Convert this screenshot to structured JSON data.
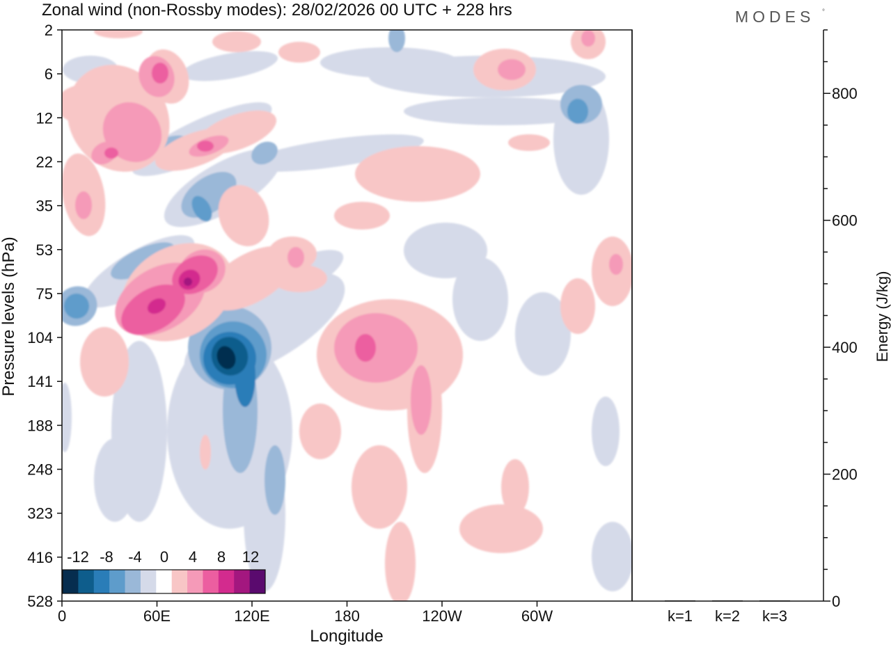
{
  "title": "Zonal wind (non-Rossby modes):  28/02/2026  00 UTC  + 228 hrs",
  "brand": "MODES",
  "brand_mark": "°",
  "colors": {
    "neg": [
      "#062d4f",
      "#0e5d8c",
      "#2a7db8",
      "#5e9ccb",
      "#9ab8d8",
      "#d5dae9"
    ],
    "pos": [
      "#f8c6c6",
      "#f59ab8",
      "#ec5ea0",
      "#d32b8e",
      "#a3177f",
      "#5a0a6e"
    ],
    "white": "#ffffff"
  },
  "chart_data": [
    {
      "type": "heatmap",
      "title": "Zonal wind (non-Rossby modes)",
      "xlabel": "Longitude",
      "ylabel": "Pressure levels (hPa)",
      "x_ticks": [
        "0",
        "60E",
        "120E",
        "180",
        "120W",
        "60W"
      ],
      "x_tick_values": [
        0,
        60,
        120,
        180,
        240,
        300
      ],
      "xlim": [
        0,
        360
      ],
      "y_ticks": [
        "2",
        "6",
        "12",
        "22",
        "35",
        "53",
        "75",
        "104",
        "141",
        "188",
        "248",
        "323",
        "416",
        "528"
      ],
      "colorbar": {
        "labels": [
          "-12",
          "-8",
          "-4",
          "0",
          "4",
          "8",
          "12"
        ],
        "levels": [
          -14,
          -12,
          -10,
          -8,
          -6,
          -4,
          -2,
          2,
          4,
          6,
          8,
          10,
          12,
          14
        ]
      },
      "features": [
        {
          "name": "negative jet core",
          "lon": 105,
          "level": "122",
          "value": -14
        },
        {
          "name": "positive maximum",
          "lon": 75,
          "level": "75",
          "value": 10
        },
        {
          "name": "positive region",
          "lon": 190,
          "level": "120",
          "value": 7
        }
      ]
    },
    {
      "type": "bar",
      "ylabel": "Energy (J/kg)",
      "categories": [
        "k=1",
        "k=2",
        "k=3"
      ],
      "values": [
        1,
        1,
        1
      ],
      "ylim": [
        0,
        900
      ],
      "y_ticks": [
        0,
        200,
        400,
        600,
        800
      ]
    }
  ]
}
